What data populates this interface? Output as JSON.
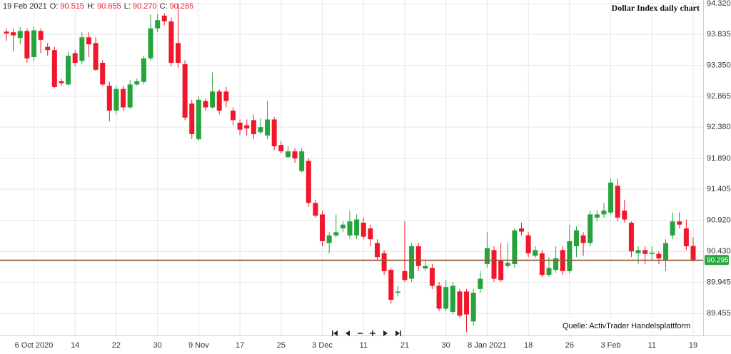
{
  "chart_data": {
    "type": "candlestick",
    "title": "Dollar Index daily chart",
    "source": "Quelle: ActivTrader Handelsplattform",
    "ohlc_header": {
      "date": "19 Feb 2021",
      "fields": [
        {
          "label": "O:",
          "value": "90.515"
        },
        {
          "label": "H:",
          "value": "90.655"
        },
        {
          "label": "L:",
          "value": "90.270"
        },
        {
          "label": "C:",
          "value": "90.285"
        }
      ]
    },
    "up_color": "#27a33c",
    "down_color": "#f0172d",
    "last_price": {
      "value": 90.295,
      "label": "90.295",
      "color": "#27a33c"
    },
    "categories": [
      null,
      null,
      null,
      null,
      "6 Oct 2020",
      null,
      null,
      null,
      null,
      null,
      "14",
      null,
      null,
      null,
      null,
      null,
      "22",
      null,
      null,
      null,
      null,
      null,
      "30",
      null,
      null,
      null,
      null,
      null,
      "9 Nov",
      null,
      null,
      null,
      null,
      null,
      "17",
      null,
      null,
      null,
      null,
      null,
      "25",
      null,
      null,
      null,
      null,
      null,
      "3 Dec",
      null,
      null,
      null,
      null,
      null,
      "11",
      null,
      null,
      null,
      null,
      null,
      "21",
      null,
      null,
      null,
      null,
      null,
      "30",
      null,
      null,
      null,
      null,
      null,
      "8 Jan 2021",
      null,
      null,
      null,
      null,
      null,
      "18",
      null,
      null,
      null,
      null,
      null,
      "26",
      null,
      null,
      null,
      null,
      null,
      "3 Feb",
      null,
      null,
      null,
      null,
      null,
      "11",
      null,
      null,
      null,
      null,
      null,
      "19"
    ],
    "open": [
      93.88,
      93.87,
      93.78,
      93.89,
      93.48,
      93.89,
      93.64,
      93.59,
      93.1,
      93.05,
      93.54,
      93.42,
      93.79,
      93.7,
      93.39,
      93.03,
      92.64,
      92.98,
      92.69,
      93.05,
      93.09,
      93.46,
      93.93,
      94.13,
      94.04,
      93.7,
      93.37,
      92.75,
      92.19,
      92.79,
      92.69,
      92.94,
      92.94,
      92.64,
      92.45,
      92.41,
      92.49,
      92.3,
      92.25,
      92.5,
      92.1,
      91.91,
      92.0,
      91.69,
      91.85,
      91.19,
      91.01,
      90.56,
      90.68,
      90.79,
      90.68,
      90.68,
      90.88,
      90.79,
      90.56,
      90.4,
      90.14,
      89.78,
      90.12,
      90.0,
      90.51,
      90.16,
      90.17,
      89.89,
      89.53,
      89.48,
      89.8,
      89.8,
      89.33,
      89.84,
      90.23,
      90.45,
      90.28,
      90.2,
      90.23,
      90.79,
      90.68,
      90.36,
      90.4,
      90.06,
      90.14,
      90.45,
      90.12,
      90.51,
      90.68,
      90.56,
      90.96,
      91.01,
      91.04,
      91.46,
      91.07,
      90.88,
      90.4,
      90.45,
      90.39,
      90.39,
      90.28,
      90.68,
      90.9,
      90.79,
      90.515
    ],
    "high": [
      93.93,
      93.93,
      93.95,
      93.93,
      93.95,
      93.93,
      93.7,
      93.64,
      93.14,
      93.57,
      93.59,
      93.87,
      93.87,
      93.79,
      93.43,
      93.09,
      93.03,
      93.03,
      93.12,
      93.14,
      93.5,
      94.15,
      94.15,
      94.17,
      94.1,
      94.32,
      93.43,
      92.81,
      92.86,
      92.83,
      93.24,
      92.97,
      93.01,
      92.69,
      92.5,
      92.5,
      92.58,
      92.52,
      92.79,
      92.54,
      92.16,
      92.08,
      92.05,
      92.05,
      91.89,
      91.24,
      91.07,
      90.73,
      91.01,
      90.9,
      91.07,
      91.01,
      90.96,
      90.85,
      90.62,
      90.45,
      90.17,
      89.89,
      90.9,
      90.56,
      90.56,
      90.28,
      90.23,
      89.95,
      89.98,
      89.95,
      89.84,
      89.84,
      89.84,
      90.12,
      90.73,
      90.51,
      90.56,
      90.56,
      90.79,
      90.88,
      90.73,
      90.51,
      90.45,
      90.34,
      90.51,
      90.51,
      90.85,
      90.82,
      90.73,
      91.07,
      91.07,
      91.19,
      91.57,
      91.57,
      91.24,
      90.9,
      90.51,
      90.51,
      90.51,
      90.43,
      90.62,
      91.04,
      91.04,
      90.93,
      90.655
    ],
    "low": [
      93.73,
      93.57,
      93.68,
      93.39,
      93.42,
      93.54,
      93.5,
      92.99,
      93.03,
      93.03,
      93.34,
      93.37,
      93.48,
      93.26,
      93.03,
      92.47,
      92.58,
      92.64,
      92.67,
      93.03,
      93.05,
      93.42,
      93.87,
      93.98,
      93.34,
      93.31,
      92.49,
      92.19,
      92.16,
      92.64,
      92.67,
      92.58,
      92.69,
      92.41,
      92.25,
      92.25,
      92.19,
      92.27,
      92.19,
      92.02,
      91.97,
      91.89,
      91.82,
      91.67,
      91.13,
      90.96,
      90.51,
      90.4,
      90.65,
      90.73,
      90.62,
      90.62,
      90.62,
      90.51,
      90.28,
      90.06,
      89.61,
      89.72,
      89.95,
      89.95,
      90.12,
      90.12,
      89.84,
      89.49,
      89.49,
      89.44,
      89.39,
      89.16,
      89.27,
      89.78,
      90.17,
      89.95,
      89.95,
      90.17,
      90.17,
      90.68,
      90.34,
      90.32,
      90.03,
      90.03,
      90.09,
      90.06,
      90.08,
      90.34,
      90.36,
      90.51,
      90.9,
      90.96,
      91.01,
      90.9,
      90.88,
      90.34,
      90.23,
      90.23,
      90.28,
      90.23,
      90.12,
      90.62,
      90.79,
      90.45,
      90.27
    ],
    "close": [
      93.85,
      93.82,
      93.89,
      93.46,
      93.9,
      93.75,
      93.59,
      93.01,
      93.07,
      93.5,
      93.39,
      93.79,
      93.68,
      93.28,
      93.05,
      92.64,
      92.98,
      92.69,
      93.05,
      93.1,
      93.46,
      93.93,
      94.06,
      94.04,
      93.39,
      93.39,
      92.53,
      92.27,
      92.81,
      92.69,
      92.94,
      92.64,
      92.79,
      92.49,
      92.34,
      92.36,
      92.27,
      92.38,
      92.5,
      92.08,
      92.0,
      92.0,
      91.89,
      92.0,
      91.19,
      90.99,
      90.59,
      90.68,
      90.73,
      90.85,
      90.9,
      90.93,
      90.66,
      90.62,
      90.34,
      90.12,
      89.67,
      89.8,
      89.98,
      90.51,
      90.2,
      90.2,
      89.89,
      89.53,
      89.87,
      89.89,
      89.42,
      89.44,
      89.78,
      90.0,
      90.48,
      90.0,
      89.98,
      90.25,
      90.76,
      90.74,
      90.4,
      90.45,
      90.06,
      90.17,
      90.32,
      90.12,
      90.59,
      90.76,
      90.56,
      91.01,
      91.01,
      91.07,
      91.51,
      90.96,
      90.93,
      90.43,
      90.45,
      90.39,
      90.41,
      90.32,
      90.56,
      90.9,
      90.85,
      90.51,
      90.285
    ],
    "ylim": [
      89.11,
      94.376
    ],
    "yticks": [
      {
        "value": 94.32,
        "label": "94.320"
      },
      {
        "value": 93.835,
        "label": "93.835"
      },
      {
        "value": 93.35,
        "label": "93.350"
      },
      {
        "value": 92.865,
        "label": "92.865"
      },
      {
        "value": 92.38,
        "label": "92.380"
      },
      {
        "value": 91.89,
        "label": "91.890"
      },
      {
        "value": 91.405,
        "label": "91.405"
      },
      {
        "value": 90.92,
        "label": "90.920"
      },
      {
        "value": 90.43,
        "label": "90.430"
      },
      {
        "value": 89.945,
        "label": "89.945"
      },
      {
        "value": 89.455,
        "label": "89.455"
      }
    ],
    "grid": true
  }
}
